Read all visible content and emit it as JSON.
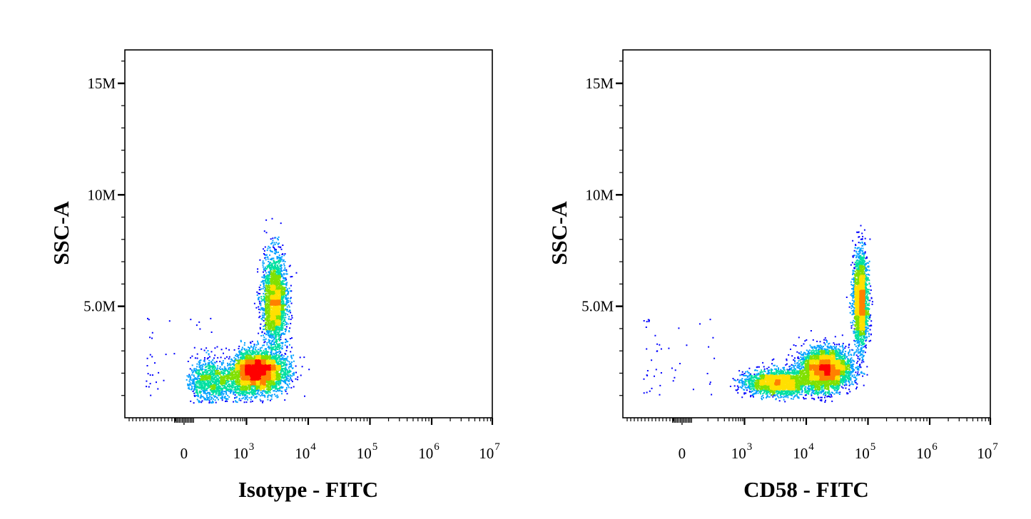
{
  "chart_data": [
    {
      "type": "scatter",
      "subtype": "flow-cytometry-density-dot-plot",
      "xlabel": "Isotype - FITC",
      "ylabel": "SSC-A",
      "x_scale": "biexponential",
      "y_scale": "linear",
      "y_ticks": [
        {
          "value": 15000000,
          "label": "15M"
        },
        {
          "value": 10000000,
          "label": "10M"
        },
        {
          "value": 5000000,
          "label": "5.0M"
        }
      ],
      "x_ticks": [
        {
          "value": 0,
          "base": "0",
          "exp": ""
        },
        {
          "value": 1000,
          "base": "10",
          "exp": "3"
        },
        {
          "value": 10000,
          "base": "10",
          "exp": "4"
        },
        {
          "value": 100000,
          "base": "10",
          "exp": "5"
        },
        {
          "value": 1000000,
          "base": "10",
          "exp": "6"
        },
        {
          "value": 10000000,
          "base": "10",
          "exp": "7"
        }
      ],
      "ylim": [
        0,
        16500000
      ],
      "color_map": [
        "#0000ff",
        "#00a0ff",
        "#00e0a0",
        "#80e000",
        "#ffe000",
        "#ff8000",
        "#ff0000"
      ],
      "populations": [
        {
          "center_x": 1500,
          "center_y": 2100000,
          "count": 4300,
          "spread_x_decades": 0.22,
          "spread_y": 450000,
          "note": "dense cluster"
        },
        {
          "center_x": 2800,
          "center_y": 5300000,
          "count": 2400,
          "spread_x_decades": 0.1,
          "spread_y": 1000000
        },
        {
          "center_x": 150,
          "center_y": 1700000,
          "count": 1300,
          "spread_x_decades": 0.5,
          "spread_y": 450000
        }
      ],
      "event_ceiling": 9000000
    },
    {
      "type": "scatter",
      "subtype": "flow-cytometry-density-dot-plot",
      "xlabel": "CD58 - FITC",
      "ylabel": "SSC-A",
      "x_scale": "biexponential",
      "y_scale": "linear",
      "y_ticks": [
        {
          "value": 15000000,
          "label": "15M"
        },
        {
          "value": 10000000,
          "label": "10M"
        },
        {
          "value": 5000000,
          "label": "5.0M"
        }
      ],
      "x_ticks": [
        {
          "value": 0,
          "base": "0",
          "exp": ""
        },
        {
          "value": 1000,
          "base": "10",
          "exp": "3"
        },
        {
          "value": 10000,
          "base": "10",
          "exp": "4"
        },
        {
          "value": 100000,
          "base": "10",
          "exp": "5"
        },
        {
          "value": 1000000,
          "base": "10",
          "exp": "6"
        },
        {
          "value": 10000000,
          "base": "10",
          "exp": "7"
        }
      ],
      "ylim": [
        0,
        16500000
      ],
      "color_map": [
        "#0000ff",
        "#00a0ff",
        "#00e0a0",
        "#80e000",
        "#ffe000",
        "#ff8000",
        "#ff0000"
      ],
      "populations": [
        {
          "center_x": 20000,
          "center_y": 2200000,
          "count": 3800,
          "spread_x_decades": 0.2,
          "spread_y": 450000,
          "note": "dense cluster"
        },
        {
          "center_x": 75000,
          "center_y": 5300000,
          "count": 2300,
          "spread_x_decades": 0.06,
          "spread_y": 1050000
        },
        {
          "center_x": 3500,
          "center_y": 1600000,
          "count": 2300,
          "spread_x_decades": 0.28,
          "spread_y": 280000
        }
      ],
      "event_ceiling": 9000000
    }
  ]
}
